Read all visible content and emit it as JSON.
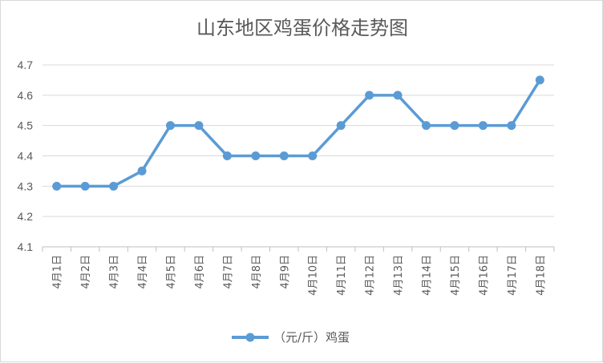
{
  "chart_data": {
    "type": "line",
    "title": "山东地区鸡蛋价格走势图",
    "xlabel": "",
    "ylabel": "",
    "categories": [
      "4月1日",
      "4月2日",
      "4月3日",
      "4月4日",
      "4月5日",
      "4月6日",
      "4月7日",
      "4月8日",
      "4月9日",
      "4月10日",
      "4月11日",
      "4月12日",
      "4月13日",
      "4月14日",
      "4月15日",
      "4月16日",
      "4月17日",
      "4月18日"
    ],
    "series": [
      {
        "name": "（元/斤）鸡蛋",
        "values": [
          4.3,
          4.3,
          4.3,
          4.35,
          4.5,
          4.5,
          4.4,
          4.4,
          4.4,
          4.4,
          4.5,
          4.6,
          4.6,
          4.5,
          4.5,
          4.5,
          4.5,
          4.65
        ]
      }
    ],
    "ylim": [
      4.1,
      4.7
    ],
    "yticks": [
      "4.1",
      "4.2",
      "4.3",
      "4.4",
      "4.5",
      "4.6",
      "4.7"
    ],
    "grid": true,
    "legend_position": "bottom",
    "colors": {
      "series": "#5b9bd5",
      "grid": "#d9d9d9",
      "text": "#595959"
    }
  }
}
